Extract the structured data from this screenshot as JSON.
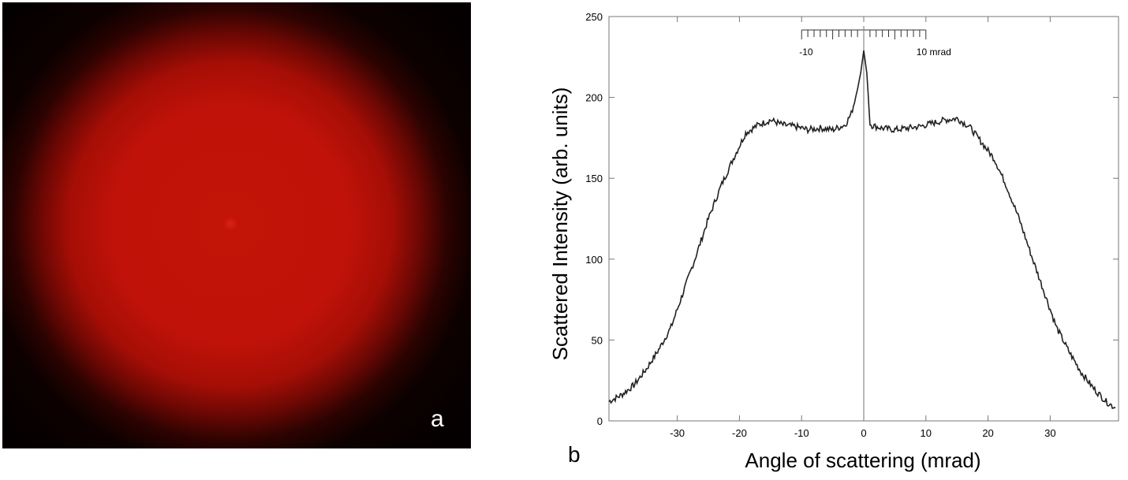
{
  "panel_a": {
    "label": "a"
  },
  "panel_b": {
    "label": "b"
  },
  "chart_data": {
    "type": "line",
    "xlabel": "Angle of scattering (mrad)",
    "ylabel": "Scattered Intensity (arb. units)",
    "xlim": [
      -41,
      41
    ],
    "ylim": [
      0,
      250
    ],
    "xticks": [
      -30,
      -20,
      -10,
      0,
      10,
      20,
      30
    ],
    "yticks": [
      0,
      50,
      100,
      150,
      200,
      250
    ],
    "grid": false,
    "inset_scale": {
      "range": [
        -10,
        10
      ],
      "labels": [
        "-10",
        "10 mrad"
      ]
    },
    "vertical_marker": 0,
    "series": [
      {
        "x": [
          -41,
          -39,
          -37,
          -35,
          -33,
          -31,
          -29,
          -27,
          -25,
          -23,
          -21,
          -19,
          -17,
          -15,
          -13,
          -11,
          -9,
          -7,
          -5,
          -3,
          -2,
          -1,
          -0.5,
          0,
          0.5,
          1,
          3,
          5,
          7,
          9,
          11,
          13,
          15,
          17,
          19,
          21,
          23,
          25,
          27,
          29,
          31,
          33,
          35,
          37,
          39,
          40.5
        ],
        "y": [
          12,
          16,
          22,
          32,
          44,
          58,
          80,
          102,
          125,
          145,
          162,
          178,
          183,
          186,
          183,
          182,
          180,
          181,
          180,
          183,
          190,
          205,
          215,
          229,
          215,
          183,
          181,
          180,
          181,
          182,
          184,
          186,
          187,
          182,
          172,
          162,
          145,
          125,
          102,
          80,
          58,
          43,
          30,
          20,
          12,
          8
        ]
      }
    ]
  }
}
